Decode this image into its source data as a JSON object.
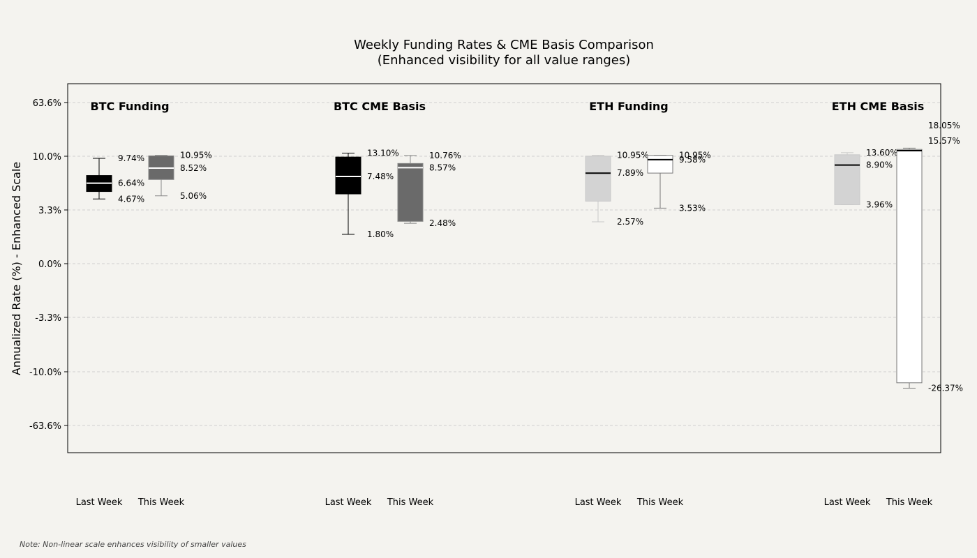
{
  "chart_data": {
    "type": "box",
    "title": "Weekly Funding Rates & CME Basis Comparison",
    "subtitle": "(Enhanced visibility for all value ranges)",
    "ylabel": "Annualized Rate (%) - Enhanced Scale",
    "y_scale": "non-linear (enhanced)",
    "y_ticks": [
      {
        "label": "63.6%",
        "value": 63.6
      },
      {
        "label": "10.0%",
        "value": 10.0
      },
      {
        "label": "3.3%",
        "value": 3.3
      },
      {
        "label": "0.0%",
        "value": 0.0
      },
      {
        "label": "-3.3%",
        "value": -3.3
      },
      {
        "label": "-10.0%",
        "value": -10.0
      },
      {
        "label": "-63.6%",
        "value": -63.6
      }
    ],
    "grid": true,
    "categories": [
      "Last Week",
      "This Week"
    ],
    "groups": [
      {
        "name": "BTC Funding",
        "boxes": [
          {
            "category": "Last Week",
            "whisker_low": 4.67,
            "q1": 5.6,
            "median": 6.64,
            "q3": 7.6,
            "whisker_high": 9.74,
            "fill": "#000000",
            "median_color": "#ffffff",
            "labels": [
              {
                "text": "9.74%",
                "value": 9.74
              },
              {
                "text": "6.64%",
                "value": 6.64
              },
              {
                "text": "4.67%",
                "value": 4.67
              }
            ]
          },
          {
            "category": "This Week",
            "whisker_low": 5.06,
            "q1": 7.1,
            "median": 8.52,
            "q3": 10.4,
            "whisker_high": 10.95,
            "fill": "#6a6a6a",
            "median_color": "#ffffff",
            "labels": [
              {
                "text": "10.95%",
                "value": 10.95
              },
              {
                "text": "8.52%",
                "value": 8.52
              },
              {
                "text": "5.06%",
                "value": 5.06
              }
            ]
          }
        ]
      },
      {
        "name": "BTC CME Basis",
        "boxes": [
          {
            "category": "Last Week",
            "whisker_low": 1.8,
            "q1": 5.3,
            "median": 7.48,
            "q3": 9.9,
            "whisker_high": 13.1,
            "fill": "#000000",
            "median_color": "#ffffff",
            "labels": [
              {
                "text": "13.10%",
                "value": 13.1
              },
              {
                "text": "7.48%",
                "value": 7.48
              },
              {
                "text": "1.80%",
                "value": 1.8
              }
            ]
          },
          {
            "category": "This Week",
            "whisker_low": 2.48,
            "q1": 2.6,
            "median": 8.57,
            "q3": 9.1,
            "whisker_high": 10.76,
            "fill": "#6a6a6a",
            "median_color": "#ffffff",
            "labels": [
              {
                "text": "10.76%",
                "value": 10.76
              },
              {
                "text": "8.57%",
                "value": 8.57
              },
              {
                "text": "2.48%",
                "value": 2.48
              }
            ]
          }
        ]
      },
      {
        "name": "ETH Funding",
        "boxes": [
          {
            "category": "Last Week",
            "whisker_low": 2.57,
            "q1": 4.4,
            "median": 7.89,
            "q3": 10.1,
            "whisker_high": 10.95,
            "fill": "#d3d3d3",
            "median_color": "#000000",
            "labels": [
              {
                "text": "10.95%",
                "value": 10.95
              },
              {
                "text": "7.89%",
                "value": 7.89
              },
              {
                "text": "2.57%",
                "value": 2.57
              }
            ]
          },
          {
            "category": "This Week",
            "whisker_low": 3.53,
            "q1": 7.9,
            "median": 9.58,
            "q3": 10.8,
            "whisker_high": 10.95,
            "fill": "#ffffff",
            "median_color": "#000000",
            "labels": [
              {
                "text": "10.95%",
                "value": 10.95
              },
              {
                "text": "9.58%",
                "value": 9.58
              },
              {
                "text": "3.53%",
                "value": 3.53
              }
            ]
          }
        ]
      },
      {
        "name": "ETH CME Basis",
        "boxes": [
          {
            "category": "Last Week",
            "whisker_low": 3.96,
            "q1": 3.96,
            "median": 8.9,
            "q3": 11.5,
            "whisker_high": 13.6,
            "fill": "#d3d3d3",
            "median_color": "#000000",
            "labels": [
              {
                "text": "13.60%",
                "value": 13.6
              },
              {
                "text": "8.90%",
                "value": 8.9
              },
              {
                "text": "3.96%",
                "value": 3.96
              }
            ]
          },
          {
            "category": "This Week",
            "whisker_low": -26.37,
            "q1": -21.0,
            "median": 15.57,
            "q3": 16.8,
            "whisker_high": 18.05,
            "fill": "#ffffff",
            "median_color": "#000000",
            "labels": [
              {
                "text": "18.05%",
                "value": 18.05
              },
              {
                "text": "15.57%",
                "value": 15.57
              },
              {
                "text": "-26.37%",
                "value": -26.37
              }
            ]
          }
        ]
      }
    ]
  },
  "note": "Note: Non-linear scale enhances visibility of smaller values"
}
